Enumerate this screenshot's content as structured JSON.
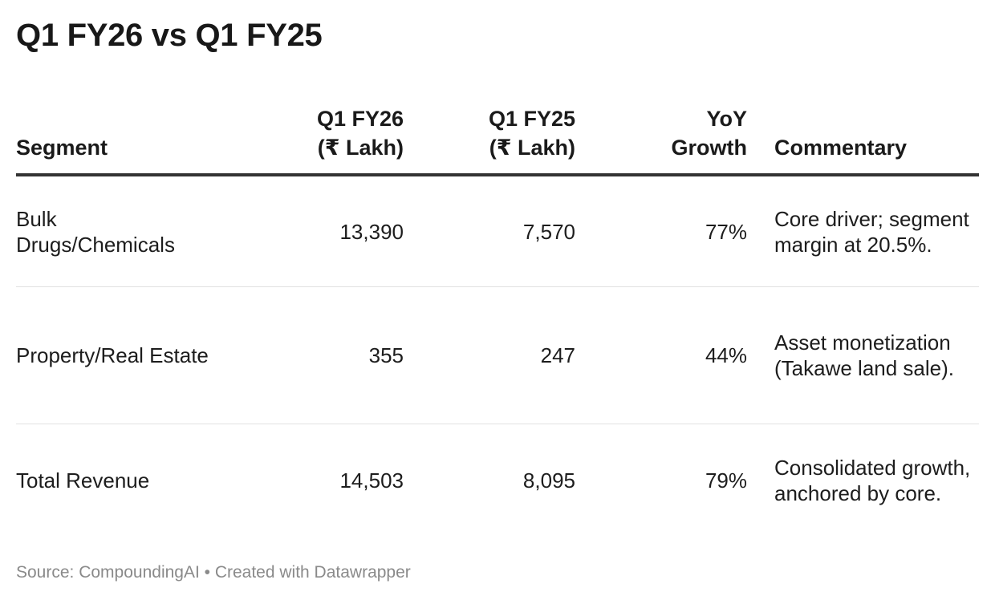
{
  "title": "Q1 FY26 vs Q1 FY25",
  "chart_data": {
    "type": "table",
    "title": "Q1 FY26 vs Q1 FY25",
    "columns": {
      "segment": "Segment",
      "q1fy26_line1": "Q1 FY26",
      "q1fy26_line2": "(₹ Lakh)",
      "q1fy25_line1": "Q1 FY25",
      "q1fy25_line2": "(₹ Lakh)",
      "yoy_line1": "YoY",
      "yoy_line2": "Growth",
      "commentary": "Commentary"
    },
    "rows": [
      {
        "segment": "Bulk Drugs/Chemicals",
        "q1fy26": "13,390",
        "q1fy25": "7,570",
        "yoy": "77%",
        "commentary": "Core driver; segment margin at 20.5%."
      },
      {
        "segment": "Property/Real Estate",
        "q1fy26": "355",
        "q1fy25": "247",
        "yoy": "44%",
        "commentary": "Asset monetization (Takawe land sale)."
      },
      {
        "segment": "Total Revenue",
        "q1fy26": "14,503",
        "q1fy25": "8,095",
        "yoy": "79%",
        "commentary": "Consolidated growth, anchored by core."
      }
    ]
  },
  "footer": "Source: CompoundingAI • Created with Datawrapper",
  "colors": {
    "text": "#1d1d1d",
    "header_rule": "#333333",
    "row_rule": "#e1e1e1",
    "footer_text": "#8a8a8a"
  }
}
